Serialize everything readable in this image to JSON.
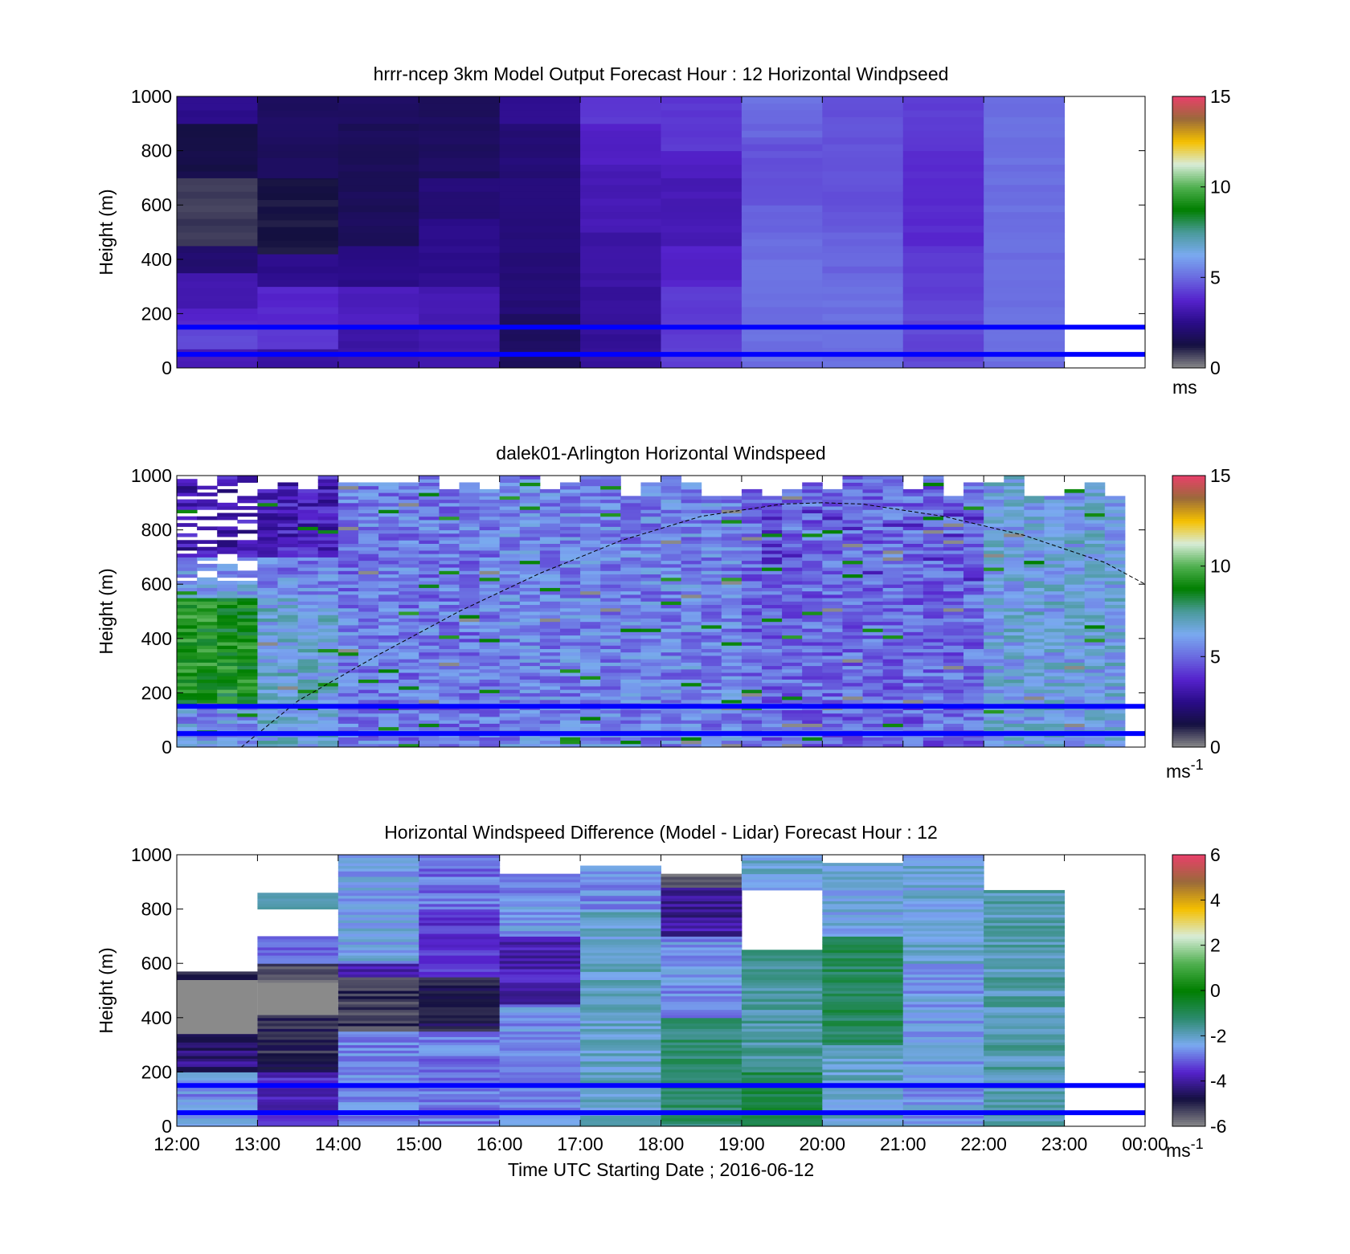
{
  "chart_data": [
    {
      "type": "heatmap",
      "title": "hrrr-ncep 3km Model Output   Forecast Hour : 12 Horizontal Windpseed",
      "xlabel": "",
      "ylabel": "Height (m)",
      "ylim": [
        0,
        1000
      ],
      "yticks": [
        "0",
        "200",
        "400",
        "600",
        "800",
        "1000"
      ],
      "xlim_hours_utc": [
        12,
        24
      ],
      "colorbar": {
        "min": 0,
        "max": 15,
        "ticks": [
          "0",
          "5",
          "10",
          "15"
        ],
        "unit_label": "ms",
        "unit_sup": ""
      },
      "reference_heights_m": [
        50,
        150
      ],
      "grid": false,
      "value_units": "m/s",
      "time_columns": [
        {
          "start": "12:00",
          "end": "13:00",
          "layers": [
            {
              "from": 0,
              "to": 70,
              "v": 3.3
            },
            {
              "from": 70,
              "to": 150,
              "v": 4.4
            },
            {
              "from": 150,
              "to": 220,
              "v": 3.8
            },
            {
              "from": 220,
              "to": 350,
              "v": 3.2
            },
            {
              "from": 350,
              "to": 450,
              "v": 2.0
            },
            {
              "from": 450,
              "to": 700,
              "v": 0.8
            },
            {
              "from": 700,
              "to": 900,
              "v": 1.4
            },
            {
              "from": 900,
              "to": 1000,
              "v": 2.6
            }
          ]
        },
        {
          "start": "13:00",
          "end": "14:00",
          "layers": [
            {
              "from": 0,
              "to": 70,
              "v": 3.0
            },
            {
              "from": 70,
              "to": 150,
              "v": 4.2
            },
            {
              "from": 150,
              "to": 300,
              "v": 3.8
            },
            {
              "from": 300,
              "to": 420,
              "v": 2.6
            },
            {
              "from": 420,
              "to": 700,
              "v": 1.2
            },
            {
              "from": 700,
              "to": 1000,
              "v": 1.8
            }
          ]
        },
        {
          "start": "14:00",
          "end": "15:00",
          "layers": [
            {
              "from": 0,
              "to": 150,
              "v": 3.0
            },
            {
              "from": 150,
              "to": 300,
              "v": 3.5
            },
            {
              "from": 300,
              "to": 450,
              "v": 2.5
            },
            {
              "from": 450,
              "to": 900,
              "v": 1.7
            },
            {
              "from": 900,
              "to": 1000,
              "v": 1.9
            }
          ]
        },
        {
          "start": "15:00",
          "end": "16:00",
          "layers": [
            {
              "from": 0,
              "to": 150,
              "v": 3.2
            },
            {
              "from": 150,
              "to": 300,
              "v": 3.3
            },
            {
              "from": 300,
              "to": 550,
              "v": 2.6
            },
            {
              "from": 550,
              "to": 700,
              "v": 2.2
            },
            {
              "from": 700,
              "to": 1000,
              "v": 1.8
            }
          ]
        },
        {
          "start": "16:00",
          "end": "17:00",
          "layers": [
            {
              "from": 0,
              "to": 200,
              "v": 1.8
            },
            {
              "from": 200,
              "to": 800,
              "v": 2.2
            },
            {
              "from": 800,
              "to": 900,
              "v": 2.1
            },
            {
              "from": 900,
              "to": 1000,
              "v": 2.6
            }
          ]
        },
        {
          "start": "17:00",
          "end": "18:00",
          "layers": [
            {
              "from": 0,
              "to": 300,
              "v": 2.8
            },
            {
              "from": 300,
              "to": 500,
              "v": 3.0
            },
            {
              "from": 500,
              "to": 750,
              "v": 3.3
            },
            {
              "from": 750,
              "to": 900,
              "v": 3.6
            },
            {
              "from": 900,
              "to": 1000,
              "v": 4.2
            }
          ]
        },
        {
          "start": "18:00",
          "end": "19:00",
          "layers": [
            {
              "from": 0,
              "to": 300,
              "v": 4.2
            },
            {
              "from": 300,
              "to": 450,
              "v": 3.7
            },
            {
              "from": 450,
              "to": 700,
              "v": 3.3
            },
            {
              "from": 700,
              "to": 800,
              "v": 3.6
            },
            {
              "from": 800,
              "to": 1000,
              "v": 4.1
            }
          ]
        },
        {
          "start": "19:00",
          "end": "20:00",
          "layers": [
            {
              "from": 0,
              "to": 500,
              "v": 5.1
            },
            {
              "from": 500,
              "to": 600,
              "v": 4.8
            },
            {
              "from": 600,
              "to": 850,
              "v": 4.6
            },
            {
              "from": 850,
              "to": 900,
              "v": 4.9
            },
            {
              "from": 900,
              "to": 1000,
              "v": 5.1
            }
          ]
        },
        {
          "start": "20:00",
          "end": "21:00",
          "layers": [
            {
              "from": 0,
              "to": 350,
              "v": 5.1
            },
            {
              "from": 350,
              "to": 500,
              "v": 4.9
            },
            {
              "from": 500,
              "to": 1000,
              "v": 4.6
            }
          ]
        },
        {
          "start": "21:00",
          "end": "22:00",
          "layers": [
            {
              "from": 0,
              "to": 250,
              "v": 4.4
            },
            {
              "from": 250,
              "to": 450,
              "v": 4.2
            },
            {
              "from": 450,
              "to": 800,
              "v": 3.9
            },
            {
              "from": 800,
              "to": 1000,
              "v": 4.2
            }
          ]
        },
        {
          "start": "22:00",
          "end": "23:00",
          "layers": [
            {
              "from": 0,
              "to": 1000,
              "v": 5.1
            }
          ]
        },
        {
          "start": "23:00",
          "end": "00:00",
          "layers": []
        }
      ]
    },
    {
      "type": "heatmap",
      "title": "dalek01-Arlington  Horizontal Windspeed",
      "xlabel": "",
      "ylabel": "Height (m)",
      "ylim": [
        0,
        1000
      ],
      "yticks": [
        "0",
        "200",
        "400",
        "600",
        "800",
        "1000"
      ],
      "xlim_hours_utc": [
        12,
        24
      ],
      "colorbar": {
        "min": 0,
        "max": 15,
        "ticks": [
          "0",
          "5",
          "10",
          "15"
        ],
        "unit_label": "ms",
        "unit_sup": "-1"
      },
      "reference_heights_m": [
        50,
        150
      ],
      "grid": false,
      "value_units": "m/s",
      "profile_interval_minutes": 15,
      "approx_field_m_s": {
        "12:00-13:00": {
          "below_150m": 5.8,
          "150-550m": 9.0,
          "550-700m": 6.0,
          "above_700m": "sparse, 2-4"
        },
        "13:00-14:00": {
          "below_550m": 6.5,
          "550-700m": 5.5,
          "above_700m": 3.5
        },
        "14:00-16:00": {
          "all_heights": 5.3,
          "notes": "isolated 9 m/s near 450-550 m"
        },
        "16:00-19:00": {
          "all_heights": 5.5,
          "notes": "isolated 9 m/s near 850-900 m"
        },
        "19:00-22:00": {
          "all_heights": 5.0,
          "notes": "scattered 3-4 m/s near 600-900 m"
        },
        "22:00-23:45": {
          "all_heights": 6.3,
          "notes": "isolated 8-9 m/s near 250 m"
        }
      },
      "overlay_curve": {
        "style": "dashed",
        "points": [
          [
            12.8,
            0
          ],
          [
            13.5,
            170
          ],
          [
            14.5,
            340
          ],
          [
            15.5,
            500
          ],
          [
            16.5,
            640
          ],
          [
            17.5,
            760
          ],
          [
            18.5,
            850
          ],
          [
            19.5,
            895
          ],
          [
            20.0,
            900
          ],
          [
            20.5,
            895
          ],
          [
            21.5,
            850
          ],
          [
            22.5,
            780
          ],
          [
            23.5,
            680
          ],
          [
            24.0,
            600
          ]
        ]
      }
    },
    {
      "type": "heatmap",
      "title": "Horizontal Windspeed Difference (Model - Lidar) Forecast Hour : 12",
      "xlabel": "Time UTC  Starting Date ; 2016-06-12",
      "ylabel": "Height (m)",
      "ylim": [
        0,
        1000
      ],
      "yticks": [
        "0",
        "200",
        "400",
        "600",
        "800",
        "1000"
      ],
      "xticks": [
        "12:00",
        "13:00",
        "14:00",
        "15:00",
        "16:00",
        "17:00",
        "18:00",
        "19:00",
        "20:00",
        "21:00",
        "22:00",
        "23:00",
        "00:00"
      ],
      "xlim_hours_utc": [
        12,
        24
      ],
      "colorbar": {
        "min": -6,
        "max": 6,
        "ticks": [
          "-6",
          "-4",
          "-2",
          "0",
          "2",
          "4",
          "6"
        ],
        "unit_label": "ms",
        "unit_sup": "-1"
      },
      "reference_heights_m": [
        50,
        150
      ],
      "grid": false,
      "value_units": "m/s",
      "time_columns": [
        {
          "start": "12:00",
          "end": "13:00",
          "layers": [
            {
              "from": 0,
              "to": 200,
              "v": -2.6
            },
            {
              "from": 200,
              "to": 340,
              "v": -4.3
            },
            {
              "from": 340,
              "to": 540,
              "v": "invalid"
            },
            {
              "from": 540,
              "to": 570,
              "v": -4.8
            }
          ]
        },
        {
          "start": "13:00",
          "end": "14:00",
          "layers": [
            {
              "from": 0,
              "to": 200,
              "v": -3.6
            },
            {
              "from": 200,
              "to": 410,
              "v": -5.0
            },
            {
              "from": 410,
              "to": 530,
              "v": "invalid"
            },
            {
              "from": 530,
              "to": 600,
              "v": -5.4
            },
            {
              "from": 600,
              "to": 700,
              "v": -3.0
            },
            {
              "from": 800,
              "to": 860,
              "v": -1.5
            }
          ]
        },
        {
          "start": "14:00",
          "end": "15:00",
          "layers": [
            {
              "from": 0,
              "to": 350,
              "v": -2.7
            },
            {
              "from": 350,
              "to": 550,
              "v": -5.2
            },
            {
              "from": 550,
              "to": 600,
              "v": -3.8
            },
            {
              "from": 600,
              "to": 1000,
              "v": -2.4
            }
          ]
        },
        {
          "start": "15:00",
          "end": "16:00",
          "layers": [
            {
              "from": 0,
              "to": 350,
              "v": -2.8
            },
            {
              "from": 350,
              "to": 550,
              "v": -4.8
            },
            {
              "from": 550,
              "to": 800,
              "v": -3.4
            },
            {
              "from": 800,
              "to": 1000,
              "v": -2.9
            }
          ]
        },
        {
          "start": "16:00",
          "end": "17:00",
          "layers": [
            {
              "from": 0,
              "to": 450,
              "v": -2.6
            },
            {
              "from": 450,
              "to": 700,
              "v": -3.8
            },
            {
              "from": 700,
              "to": 930,
              "v": -2.6
            }
          ]
        },
        {
          "start": "17:00",
          "end": "18:00",
          "layers": [
            {
              "from": 0,
              "to": 800,
              "v": -2.1
            },
            {
              "from": 800,
              "to": 960,
              "v": -2.6
            }
          ]
        },
        {
          "start": "18:00",
          "end": "19:00",
          "layers": [
            {
              "from": 0,
              "to": 400,
              "v": -1.2
            },
            {
              "from": 400,
              "to": 700,
              "v": -2.6
            },
            {
              "from": 700,
              "to": 880,
              "v": -4.0
            },
            {
              "from": 880,
              "to": 930,
              "v": -5.6
            }
          ]
        },
        {
          "start": "19:00",
          "end": "20:00",
          "layers": [
            {
              "from": 0,
              "to": 200,
              "v": -0.9
            },
            {
              "from": 200,
              "to": 650,
              "v": -1.7
            },
            {
              "from": 870,
              "to": 1000,
              "v": -2.2
            }
          ]
        },
        {
          "start": "20:00",
          "end": "21:00",
          "layers": [
            {
              "from": 0,
              "to": 300,
              "v": -2.1
            },
            {
              "from": 300,
              "to": 700,
              "v": -1.0
            },
            {
              "from": 700,
              "to": 970,
              "v": -2.3
            }
          ]
        },
        {
          "start": "21:00",
          "end": "22:00",
          "layers": [
            {
              "from": 0,
              "to": 600,
              "v": -2.5
            },
            {
              "from": 600,
              "to": 1000,
              "v": -2.2
            }
          ]
        },
        {
          "start": "22:00",
          "end": "23:00",
          "layers": [
            {
              "from": 0,
              "to": 870,
              "v": -1.8
            }
          ]
        },
        {
          "start": "23:00",
          "end": "00:00",
          "layers": []
        }
      ]
    }
  ],
  "colormaps": {
    "speed_0_15": [
      "#8a8a8a",
      "#141040",
      "#2a0c88",
      "#5522cc",
      "#6a6ae0",
      "#7aaaf0",
      "#4a9a9a",
      "#007f00",
      "#50b050",
      "#d8ecd8",
      "#f5c000",
      "#9a6a3a",
      "#e8406a"
    ],
    "diff_-6_6": [
      "#8a8a8a",
      "#141040",
      "#5522cc",
      "#7aaaf0",
      "#2a8a6a",
      "#007f00",
      "#50b050",
      "#d8ecd8",
      "#f5c000",
      "#9a6a3a",
      "#e8406a"
    ],
    "reference_line_color": "#0000ff"
  }
}
